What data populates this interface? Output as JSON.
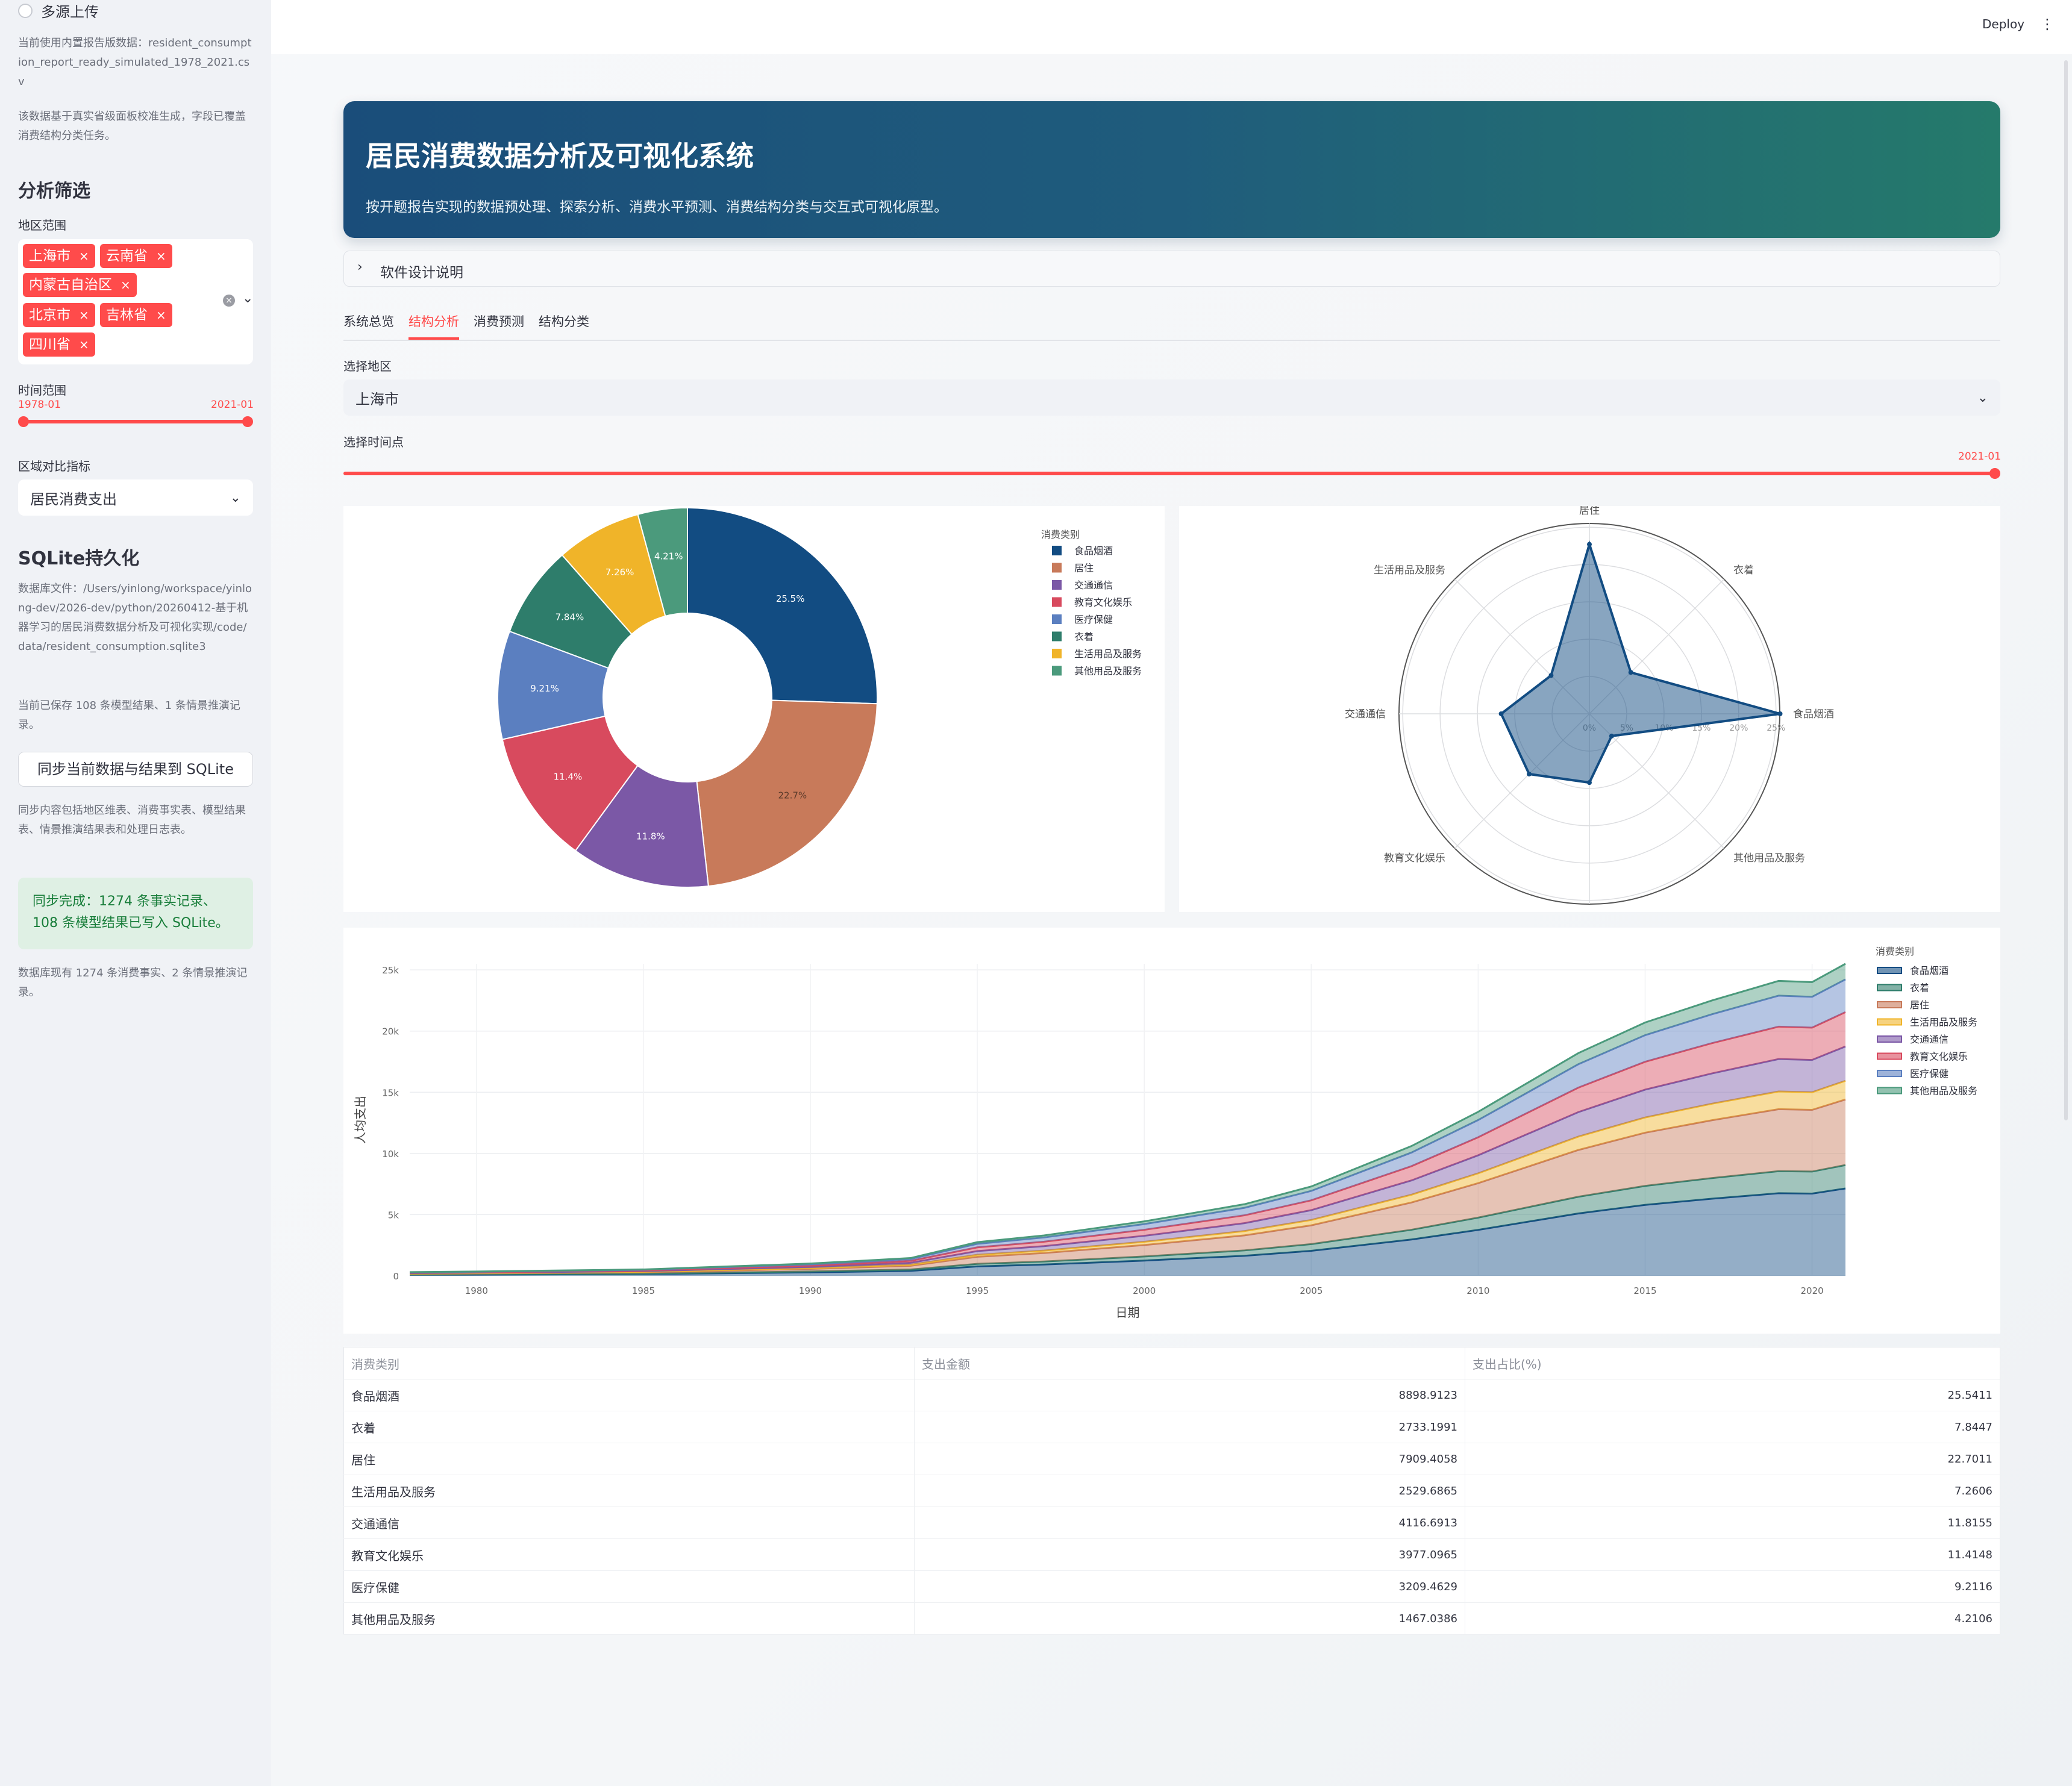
{
  "sidebar": {
    "radio_label": "多源上传",
    "data_note": "当前使用内置报告版数据：resident_consumption_report_ready_simulated_1978_2021.csv",
    "calib_note": "该数据基于真实省级面板校准生成，字段已覆盖消费结构分类任务。",
    "filter_title": "分析筛选",
    "region_label": "地区范围",
    "regions": [
      "上海市",
      "云南省",
      "内蒙古自治区",
      "北京市",
      "吉林省",
      "四川省"
    ],
    "time_label": "时间范围",
    "time_start": "1978-01",
    "time_end": "2021-01",
    "compare_label": "区域对比指标",
    "compare_value": "居民消费支出",
    "sqlite_title": "SQLite持久化",
    "db_note": "数据库文件：/Users/yinlong/workspace/yinlong-dev/2026-dev/python/20260412-基于机器学习的居民消费数据分析及可视化实现/code/data/resident_consumption.sqlite3",
    "saved_note": "当前已保存 108 条模型结果、1 条情景推演记录。",
    "sync_button": "同步当前数据与结果到 SQLite",
    "sync_note": "同步内容包括地区维表、消费事实表、模型结果表、情景推演结果表和处理日志表。",
    "success_msg": "同步完成：1274 条事实记录、108 条模型结果已写入 SQLite。",
    "db_status": "数据库现有 1274 条消费事实、2 条情景推演记录。"
  },
  "header": {
    "deploy": "Deploy",
    "menu_icon": "kebab-menu-icon"
  },
  "hero": {
    "title": "居民消费数据分析及可视化系统",
    "subtitle": "按开题报告实现的数据预处理、探索分析、消费水平预测、消费结构分类与交互式可视化原型。"
  },
  "expander": {
    "label": "软件设计说明"
  },
  "tabs": [
    "系统总览",
    "结构分析",
    "消费预测",
    "结构分类"
  ],
  "active_tab": "结构分析",
  "controls": {
    "region_label": "选择地区",
    "region_value": "上海市",
    "time_label": "选择时间点",
    "time_value": "2021-01"
  },
  "colors": {
    "accent": "#ff4b4b",
    "categories": {
      "食品烟酒": "#124c82",
      "衣着": "#2e7d6b",
      "居住": "#c87a5a",
      "生活用品及服务": "#f0b429",
      "交通通信": "#7b58a6",
      "教育文化娱乐": "#d84a5e",
      "医疗保健": "#5b7fc0",
      "其他用品及服务": "#4b9a7c"
    }
  },
  "chart_data": [
    {
      "type": "pie",
      "hole": true,
      "legend_title": "消费类别",
      "legend_position": "top-right",
      "labels": [
        "食品烟酒",
        "居住",
        "交通通信",
        "教育文化娱乐",
        "医疗保健",
        "衣着",
        "生活用品及服务",
        "其他用品及服务"
      ],
      "values": [
        25.5,
        22.7,
        11.8,
        11.4,
        9.21,
        7.84,
        7.26,
        4.21
      ],
      "value_labels": [
        "25.5%",
        "22.7%",
        "11.8%",
        "11.4%",
        "9.21%",
        "7.84%",
        "7.26%",
        "4.21%"
      ]
    },
    {
      "type": "radar",
      "axes": [
        "食品烟酒",
        "衣着",
        "居住",
        "生活用品及服务",
        "交通通信",
        "教育文化娱乐",
        "医疗保健",
        "其他用品及服务"
      ],
      "values": [
        25.5411,
        7.8447,
        22.7011,
        7.2606,
        11.8155,
        11.4148,
        9.2116,
        4.2106
      ],
      "radial_ticks": [
        "0%",
        "5%",
        "10%",
        "15%",
        "20%",
        "25%"
      ],
      "radial_range": [
        0,
        25.5
      ]
    },
    {
      "type": "area",
      "stacked": true,
      "xlabel": "日期",
      "ylabel": "人均支出",
      "xlim": [
        1978,
        2021
      ],
      "ylim": [
        0,
        25500
      ],
      "x_ticks": [
        "1980",
        "1985",
        "1990",
        "1995",
        "2000",
        "2005",
        "2010",
        "2015",
        "2020"
      ],
      "y_ticks": [
        "0",
        "5k",
        "10k",
        "15k",
        "20k",
        "25k"
      ],
      "legend_title": "消费类别",
      "legend_position": "top-right",
      "x": [
        1978,
        1980,
        1985,
        1990,
        1993,
        1995,
        1997,
        2000,
        2003,
        2005,
        2008,
        2010,
        2013,
        2015,
        2017,
        2019,
        2020,
        2021
      ],
      "totals": [
        300,
        350,
        520,
        1000,
        1450,
        2750,
        3300,
        4450,
        5850,
        7300,
        10600,
        13400,
        18200,
        20700,
        22500,
        24100,
        24000,
        25500
      ],
      "series": [
        {
          "name": "食品烟酒",
          "share": 0.28
        },
        {
          "name": "衣着",
          "share": 0.075
        },
        {
          "name": "居住",
          "share": 0.21
        },
        {
          "name": "生活用品及服务",
          "share": 0.06
        },
        {
          "name": "交通通信",
          "share": 0.11
        },
        {
          "name": "教育文化娱乐",
          "share": 0.11
        },
        {
          "name": "医疗保健",
          "share": 0.105
        },
        {
          "name": "其他用品及服务",
          "share": 0.05
        }
      ]
    }
  ],
  "table": {
    "columns": [
      "消费类别",
      "支出金额",
      "支出占比(%)"
    ],
    "rows": [
      [
        "食品烟酒",
        "8898.9123",
        "25.5411"
      ],
      [
        "衣着",
        "2733.1991",
        "7.8447"
      ],
      [
        "居住",
        "7909.4058",
        "22.7011"
      ],
      [
        "生活用品及服务",
        "2529.6865",
        "7.2606"
      ],
      [
        "交通通信",
        "4116.6913",
        "11.8155"
      ],
      [
        "教育文化娱乐",
        "3977.0965",
        "11.4148"
      ],
      [
        "医疗保健",
        "3209.4629",
        "9.2116"
      ],
      [
        "其他用品及服务",
        "1467.0386",
        "4.2106"
      ]
    ]
  }
}
